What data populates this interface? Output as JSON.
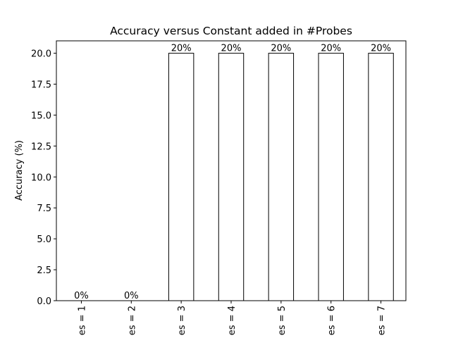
{
  "chart_data": {
    "type": "bar",
    "title": "Accuracy versus Constant added in #Probes",
    "y_label": "Accuracy (%)",
    "categories": [
      "es = 1",
      "es = 2",
      "es = 3",
      "es = 4",
      "es = 5",
      "es = 6",
      "es = 7"
    ],
    "values": [
      0,
      0,
      20,
      20,
      20,
      20,
      20
    ],
    "value_labels": [
      "0%",
      "0%",
      "20%",
      "20%",
      "20%",
      "20%",
      "20%"
    ],
    "color": "#ffffff",
    "edge_color": "#000000",
    "ylim": [
      0,
      21
    ],
    "yticks": [
      {
        "value": 0,
        "label": "0.0"
      },
      {
        "value": 2.5,
        "label": "2.5"
      },
      {
        "value": 5,
        "label": "5.0"
      },
      {
        "value": 7.5,
        "label": "7.5"
      },
      {
        "value": 10,
        "label": "10.0"
      },
      {
        "value": 12.5,
        "label": "12.5"
      },
      {
        "value": 15,
        "label": "15.0"
      },
      {
        "value": 17.5,
        "label": "17.5"
      },
      {
        "value": 20,
        "label": "20.0"
      }
    ],
    "grid": false
  }
}
